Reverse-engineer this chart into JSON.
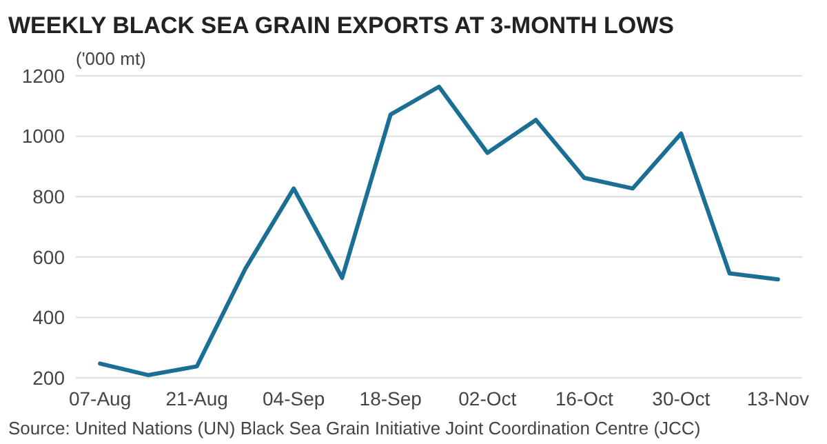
{
  "chart_data": {
    "type": "line",
    "title": "WEEKLY BLACK SEA GRAIN EXPORTS AT 3-MONTH LOWS",
    "ylabel": "('000 mt)",
    "categories": [
      "07-Aug",
      null,
      "21-Aug",
      null,
      "04-Sep",
      null,
      "18-Sep",
      null,
      "02-Oct",
      null,
      "16-Oct",
      null,
      "30-Oct",
      null,
      "13-Nov"
    ],
    "series": [
      {
        "color": "#1b6f94",
        "values": [
          247,
          209,
          238,
          561,
          827,
          531,
          1072,
          1164,
          945,
          1054,
          862,
          827,
          1009,
          546,
          526
        ]
      }
    ],
    "ylim": [
      200,
      1200
    ],
    "yticks": [
      200,
      400,
      600,
      800,
      1000,
      1200
    ],
    "grid": "y",
    "marker": "none",
    "line_style": "solid",
    "annotations": [
      "Source: United Nations (UN) Black Sea Grain Initiative Joint Coordination Centre (JCC)"
    ]
  }
}
